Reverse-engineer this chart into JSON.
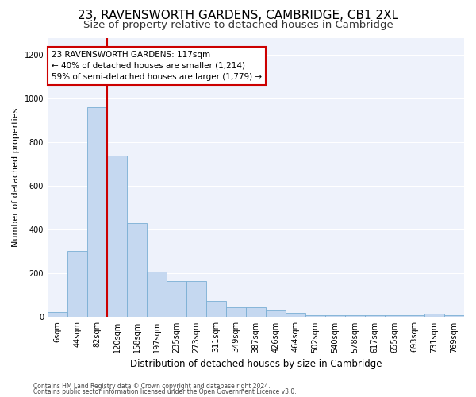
{
  "title": "23, RAVENSWORTH GARDENS, CAMBRIDGE, CB1 2XL",
  "subtitle": "Size of property relative to detached houses in Cambridge",
  "xlabel": "Distribution of detached houses by size in Cambridge",
  "ylabel": "Number of detached properties",
  "bin_labels": [
    "6sqm",
    "44sqm",
    "82sqm",
    "120sqm",
    "158sqm",
    "197sqm",
    "235sqm",
    "273sqm",
    "311sqm",
    "349sqm",
    "387sqm",
    "426sqm",
    "464sqm",
    "502sqm",
    "540sqm",
    "578sqm",
    "617sqm",
    "655sqm",
    "693sqm",
    "731sqm",
    "769sqm"
  ],
  "bar_heights": [
    25,
    305,
    960,
    740,
    430,
    210,
    165,
    165,
    75,
    47,
    47,
    30,
    18,
    10,
    10,
    10,
    10,
    10,
    10,
    15,
    10
  ],
  "bar_color": "#c5d8f0",
  "bar_edge_color": "#7aafd4",
  "vline_x": 3.0,
  "vline_color": "#cc0000",
  "annotation_text": "23 RAVENSWORTH GARDENS: 117sqm\n← 40% of detached houses are smaller (1,214)\n59% of semi-detached houses are larger (1,779) →",
  "annotation_box_color": "#ffffff",
  "annotation_box_edge_color": "#cc0000",
  "ylim": [
    0,
    1280
  ],
  "yticks": [
    0,
    200,
    400,
    600,
    800,
    1000,
    1200
  ],
  "footer_line1": "Contains HM Land Registry data © Crown copyright and database right 2024.",
  "footer_line2": "Contains public sector information licensed under the Open Government Licence v3.0.",
  "bg_color": "#eef2fb",
  "title_fontsize": 11,
  "subtitle_fontsize": 9.5,
  "xlabel_fontsize": 8.5,
  "ylabel_fontsize": 8,
  "tick_fontsize": 7,
  "annotation_fontsize": 7.5,
  "footer_fontsize": 5.5
}
